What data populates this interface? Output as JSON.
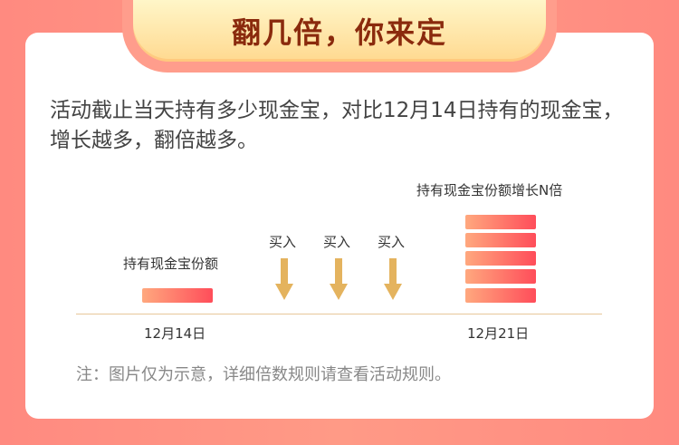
{
  "title": "翻几倍，你来定",
  "description": "活动截止当天持有多少现金宝，对比12月14日持有的现金宝，增长越多，翻倍越多。",
  "chart": {
    "label_before": "持有现金宝份额",
    "label_after": "持有现金宝份额增长N倍",
    "buy_labels": [
      "买入",
      "买入",
      "买入"
    ],
    "date_start": "12月14日",
    "date_end": "12月21日",
    "bar_colors": [
      "#ffa87e",
      "#ff4d5a"
    ],
    "arrow_color": "#e4b35e"
  },
  "note": "注：图片仅为示意，详细倍数规则请查看活动规则。"
}
